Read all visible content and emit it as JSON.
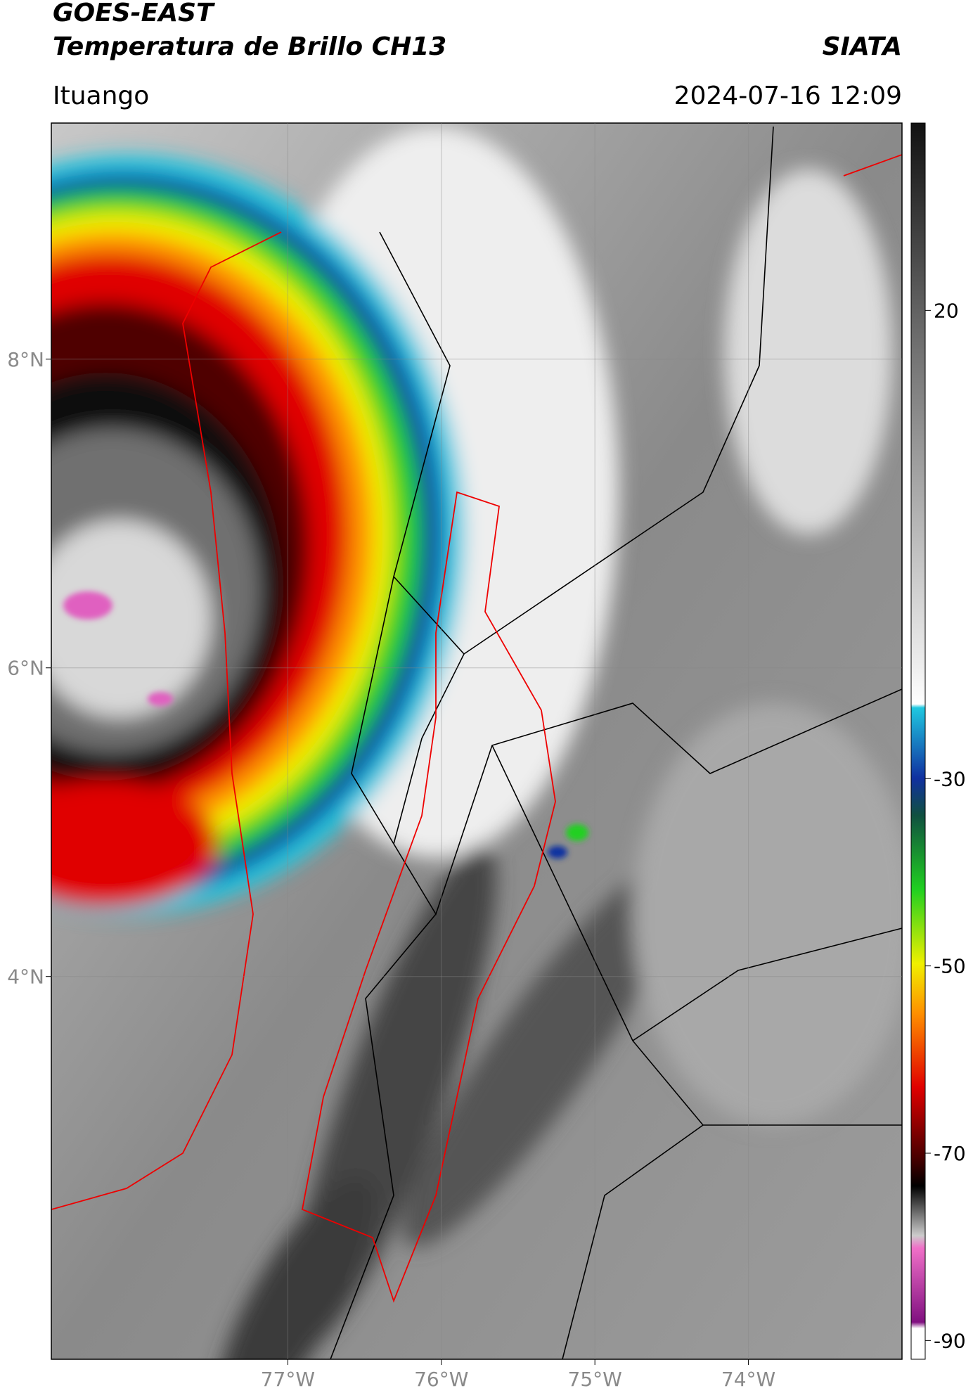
{
  "header": {
    "title": "GOES-EAST",
    "subtitle": "Temperatura de Brillo CH13",
    "source": "SIATA",
    "location": "Ituango",
    "datetime": "2024-07-16 12:09"
  },
  "map": {
    "xlim": [
      -78.54,
      -73.0
    ],
    "ylim": [
      1.52,
      9.53
    ],
    "xticks": [
      {
        "value": -77,
        "label": "77°W"
      },
      {
        "value": -76,
        "label": "76°W"
      },
      {
        "value": -75,
        "label": "75°W"
      },
      {
        "value": -74,
        "label": "74°W"
      }
    ],
    "yticks": [
      {
        "value": 8,
        "label": "8°N"
      },
      {
        "value": 6,
        "label": "6°N"
      },
      {
        "value": 4,
        "label": "4°N"
      }
    ],
    "grid": true
  },
  "colorbar": {
    "lim": [
      -92,
      40
    ],
    "ticks": [
      20,
      -30,
      -50,
      -70,
      -90
    ]
  }
}
